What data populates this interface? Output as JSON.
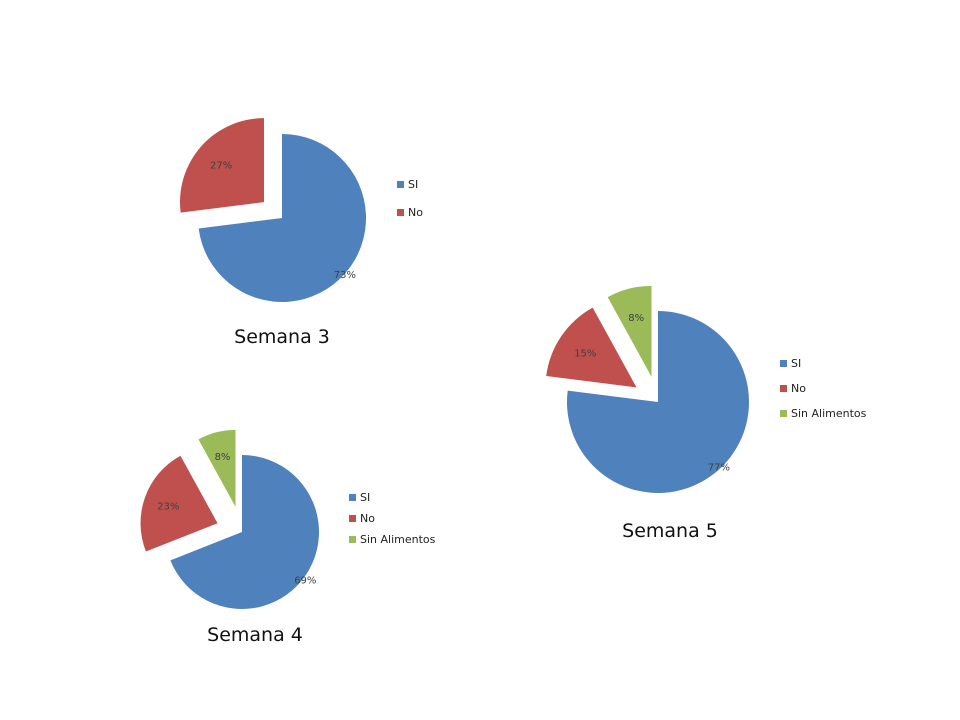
{
  "colors": {
    "si": "#4f81bd",
    "no": "#c0504d",
    "sin_alimentos": "#9bbb59"
  },
  "chart_data": [
    {
      "type": "pie",
      "title": "Semana 3",
      "exploded": true,
      "legend": "right",
      "slices": [
        {
          "label": "SI",
          "value": 73,
          "display": "73%",
          "color_key": "si"
        },
        {
          "label": "No",
          "value": 27,
          "display": "27%",
          "color_key": "no"
        }
      ]
    },
    {
      "type": "pie",
      "title": "Semana 4",
      "exploded": true,
      "legend": "right",
      "slices": [
        {
          "label": "SI",
          "value": 69,
          "display": "69%",
          "color_key": "si"
        },
        {
          "label": "No",
          "value": 23,
          "display": "23%",
          "color_key": "no"
        },
        {
          "label": "Sin Alimentos",
          "value": 8,
          "display": "8%",
          "color_key": "sin_alimentos"
        }
      ]
    },
    {
      "type": "pie",
      "title": "Semana 5",
      "exploded": true,
      "legend": "right",
      "slices": [
        {
          "label": "SI",
          "value": 77,
          "display": "77%",
          "color_key": "si"
        },
        {
          "label": "No",
          "value": 15,
          "display": "15%",
          "color_key": "no"
        },
        {
          "label": "Sin Alimentos",
          "value": 8,
          "display": "8%",
          "color_key": "sin_alimentos"
        }
      ]
    }
  ]
}
